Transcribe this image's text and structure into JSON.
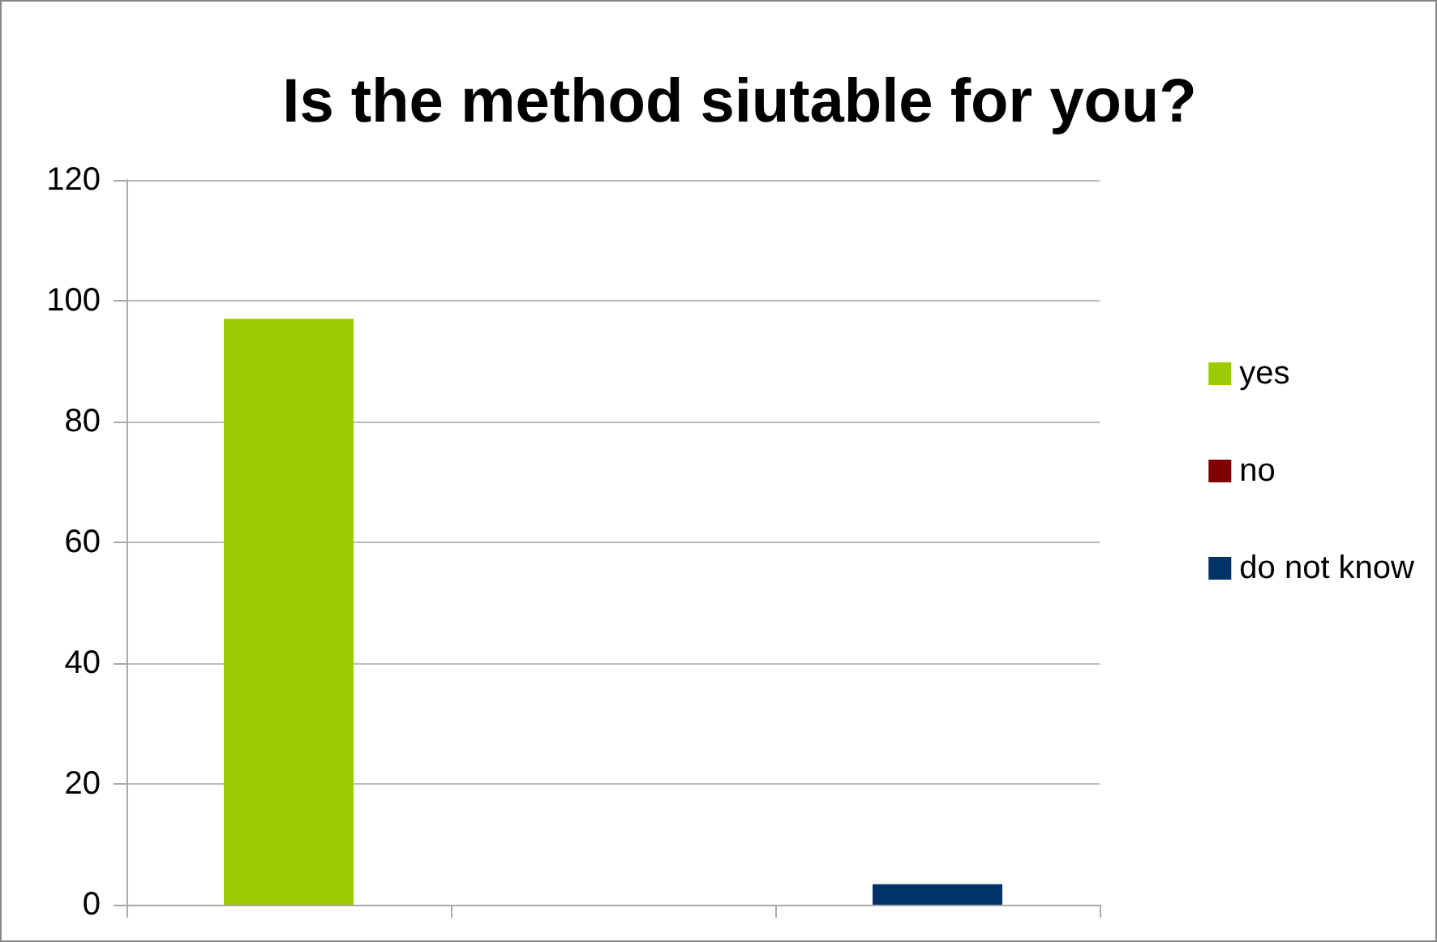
{
  "chart_data": {
    "type": "bar",
    "title": "Is the method siutable for you?",
    "categories": [
      null,
      null,
      null
    ],
    "series": [
      {
        "name": "yes",
        "color": "#9bcb00",
        "values": [
          97,
          null,
          null
        ]
      },
      {
        "name": "no",
        "color": "#7f0000",
        "values": [
          null,
          0,
          null
        ]
      },
      {
        "name": "do not know",
        "color": "#003366",
        "values": [
          null,
          null,
          3.4
        ]
      }
    ],
    "ylim": [
      0,
      120
    ],
    "yticks": [
      0,
      20,
      40,
      60,
      80,
      100,
      120
    ],
    "grid": "y",
    "legend": "right"
  }
}
